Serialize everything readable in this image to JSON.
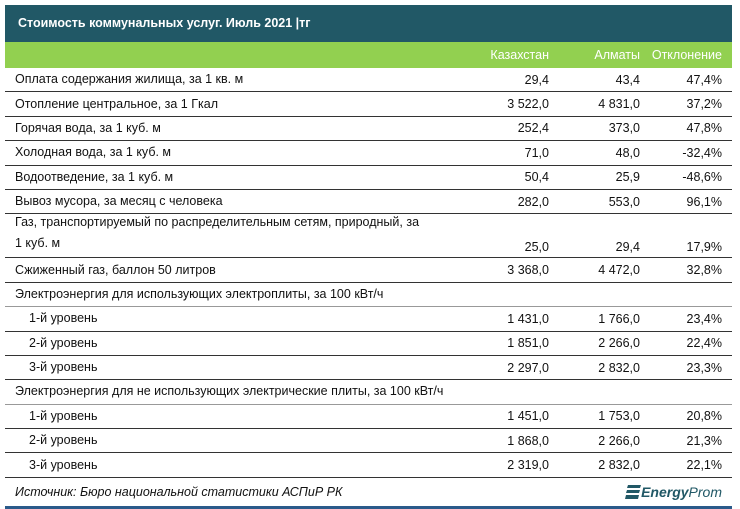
{
  "title": "Стоимость коммунальных услуг. Июль 2021 |тг",
  "columns": [
    "Казахстан",
    "Алматы",
    "Отклонение"
  ],
  "rows": [
    {
      "label": "Оплата содержания жилища, за 1 кв. м",
      "kz": "29,4",
      "alm": "43,4",
      "dev": "47,4%"
    },
    {
      "label": "Отопление центральное, за 1 Гкал",
      "kz": "3 522,0",
      "alm": "4 831,0",
      "dev": "37,2%"
    },
    {
      "label": "Горячая вода, за 1 куб. м",
      "kz": "252,4",
      "alm": "373,0",
      "dev": "47,8%"
    },
    {
      "label": "Холодная вода, за 1 куб. м",
      "kz": "71,0",
      "alm": "48,0",
      "dev": "-32,4%"
    },
    {
      "label": "Водоотведение, за 1 куб. м",
      "kz": "50,4",
      "alm": "25,9",
      "dev": "-48,6%"
    },
    {
      "label": "Вывоз мусора, за месяц с человека",
      "kz": "282,0",
      "alm": "553,0",
      "dev": "96,1%"
    },
    {
      "label": "Газ, транспортируемый по распределительным сетям, природный, за 1 куб. м",
      "kz": "25,0",
      "alm": "29,4",
      "dev": "17,9%"
    },
    {
      "label": "Сжиженный газ, баллон 50 литров",
      "kz": "3 368,0",
      "alm": "4 472,0",
      "dev": "32,8%"
    },
    {
      "label": "Электроэнергия для использующих электроплиты, за 100 кВт/ч"
    },
    {
      "label": "1-й уровень",
      "kz": "1 431,0",
      "alm": "1 766,0",
      "dev": "23,4%"
    },
    {
      "label": "2-й уровень",
      "kz": "1 851,0",
      "alm": "2 266,0",
      "dev": "22,4%"
    },
    {
      "label": "3-й уровень",
      "kz": "2 297,0",
      "alm": "2 832,0",
      "dev": "23,3%"
    },
    {
      "label": "Электроэнергия для не использующих электрические плиты, за 100 кВт/ч"
    },
    {
      "label": "1-й уровень",
      "kz": "1 451,0",
      "alm": "1 753,0",
      "dev": "20,8%"
    },
    {
      "label": "2-й уровень",
      "kz": "1 868,0",
      "alm": "2 266,0",
      "dev": "21,3%"
    },
    {
      "label": "3-й уровень",
      "kz": "2 319,0",
      "alm": "2 832,0",
      "dev": "22,1%"
    }
  ],
  "source": "Источник: Бюро национальной статистики АСПиР РК",
  "logo": {
    "part1": "Energy",
    "part2": "Prom"
  },
  "colors": {
    "title_bg": "#215866",
    "header_bg": "#92d050"
  }
}
